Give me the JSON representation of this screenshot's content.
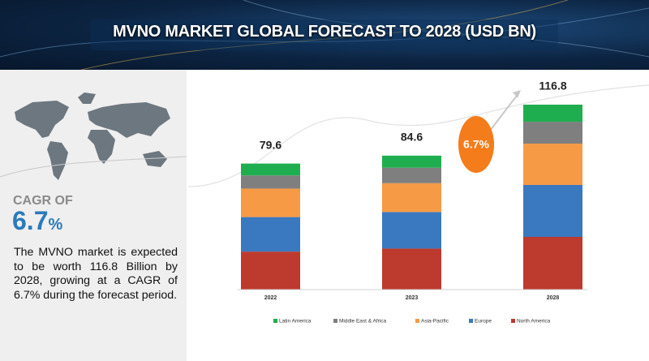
{
  "title": "MVNO MARKET GLOBAL FORECAST TO 2028 (USD BN)",
  "cagr_label": "CAGR OF",
  "cagr_value": "6.7",
  "cagr_unit": "%",
  "description": "The MVNO market is expected to be worth 116.8 Billion by 2028, growing at a CAGR of 6.7% during the forecast period.",
  "chart_data": {
    "type": "stacked_bar",
    "categories": [
      "2022",
      "2023",
      "2028"
    ],
    "totals": [
      79.6,
      84.6,
      116.8
    ],
    "annotation": "6.7%",
    "series": [
      {
        "name": "Latin America",
        "color": "#1fae4f",
        "values": [
          7.5,
          7.6,
          10.8
        ]
      },
      {
        "name": "Middle East & Africa",
        "color": "#7f7f7f",
        "values": [
          8.3,
          9.8,
          13.8
        ]
      },
      {
        "name": "Asia-Pacific",
        "color": "#f79a46",
        "values": [
          18.0,
          18.2,
          26.1
        ]
      },
      {
        "name": "Europe",
        "color": "#3a79bf",
        "values": [
          21.8,
          23.1,
          32.8
        ]
      },
      {
        "name": "North America",
        "color": "#bd3a2e",
        "values": [
          24.0,
          25.9,
          33.3
        ]
      }
    ]
  }
}
